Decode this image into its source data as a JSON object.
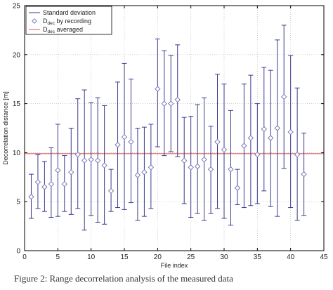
{
  "chart_data": {
    "type": "scatter",
    "xlabel": "File index",
    "ylabel": "Decorrelation distance [m]",
    "xlim": [
      0,
      45
    ],
    "ylim": [
      0,
      25
    ],
    "xticks": [
      0,
      5,
      10,
      15,
      20,
      25,
      30,
      35,
      40,
      45
    ],
    "yticks": [
      0,
      5,
      10,
      15,
      20,
      25
    ],
    "grid": true,
    "legend_position": "top-left",
    "legend": [
      {
        "key": "std",
        "label": "Standard deviation",
        "marker": "line",
        "color": "#3a3a8c"
      },
      {
        "key": "rec",
        "label_main": "D",
        "label_sub": "dec",
        "label_rest": " by recording",
        "marker": "diamond",
        "color": "#7a7ab8"
      },
      {
        "key": "avg",
        "label_main": "D",
        "label_sub": "dec",
        "label_rest": " averaged",
        "marker": "line",
        "color": "#e05a5a"
      }
    ],
    "averaged": 9.9,
    "series": [
      {
        "name": "Standard deviation",
        "x": [
          1,
          2,
          3,
          4,
          5,
          6,
          7,
          8,
          9,
          10,
          11,
          12,
          13,
          14,
          15,
          16,
          17,
          18,
          19,
          20,
          21,
          22,
          23,
          24,
          25,
          26,
          27,
          28,
          29,
          30,
          31,
          32,
          33,
          34,
          35,
          36,
          37,
          38,
          39,
          40,
          41,
          42
        ],
        "low": [
          3.3,
          4.3,
          4.0,
          3.4,
          3.5,
          4.0,
          3.7,
          4.3,
          2.1,
          3.6,
          2.9,
          2.7,
          4.0,
          4.4,
          4.2,
          4.9,
          3.1,
          3.5,
          4.3,
          10.6,
          9.7,
          10.1,
          9.6,
          4.8,
          3.4,
          3.8,
          3.1,
          3.8,
          4.3,
          3.3,
          2.6,
          4.7,
          4.4,
          4.6,
          4.8,
          6.1,
          4.5,
          3.5,
          8.4,
          4.4,
          3.1,
          3.6
        ],
        "high": [
          7.8,
          9.8,
          9.1,
          10.5,
          12.9,
          9.7,
          12.5,
          15.5,
          16.4,
          15.1,
          15.6,
          14.8,
          8.3,
          17.2,
          19.1,
          17.5,
          12.5,
          12.6,
          12.9,
          21.6,
          20.4,
          19.9,
          21.0,
          13.6,
          13.7,
          14.9,
          15.6,
          12.7,
          18.0,
          17.0,
          14.3,
          8.3,
          17.0,
          17.9,
          15.0,
          18.7,
          18.4,
          21.5,
          23.0,
          19.9,
          16.6,
          12.0
        ]
      },
      {
        "name": "Ddec by recording",
        "x": [
          1,
          2,
          3,
          4,
          5,
          6,
          7,
          8,
          9,
          10,
          11,
          12,
          13,
          14,
          15,
          16,
          17,
          18,
          19,
          20,
          21,
          22,
          23,
          24,
          25,
          26,
          27,
          28,
          29,
          30,
          31,
          32,
          33,
          34,
          35,
          36,
          37,
          38,
          39,
          40,
          41,
          42
        ],
        "y": [
          5.5,
          7.0,
          6.5,
          6.8,
          8.2,
          6.8,
          8.0,
          9.8,
          9.2,
          9.3,
          9.2,
          8.7,
          6.1,
          10.8,
          11.6,
          11.1,
          7.7,
          8.0,
          8.5,
          16.5,
          15.0,
          15.0,
          15.4,
          9.2,
          8.5,
          8.6,
          9.3,
          8.3,
          11.1,
          10.3,
          8.3,
          6.4,
          10.7,
          11.5,
          9.8,
          12.4,
          11.5,
          12.5,
          15.7,
          12.1,
          9.8,
          7.8
        ]
      }
    ]
  },
  "caption": "Figure 2: Range decorrelation analysis of the measured data"
}
